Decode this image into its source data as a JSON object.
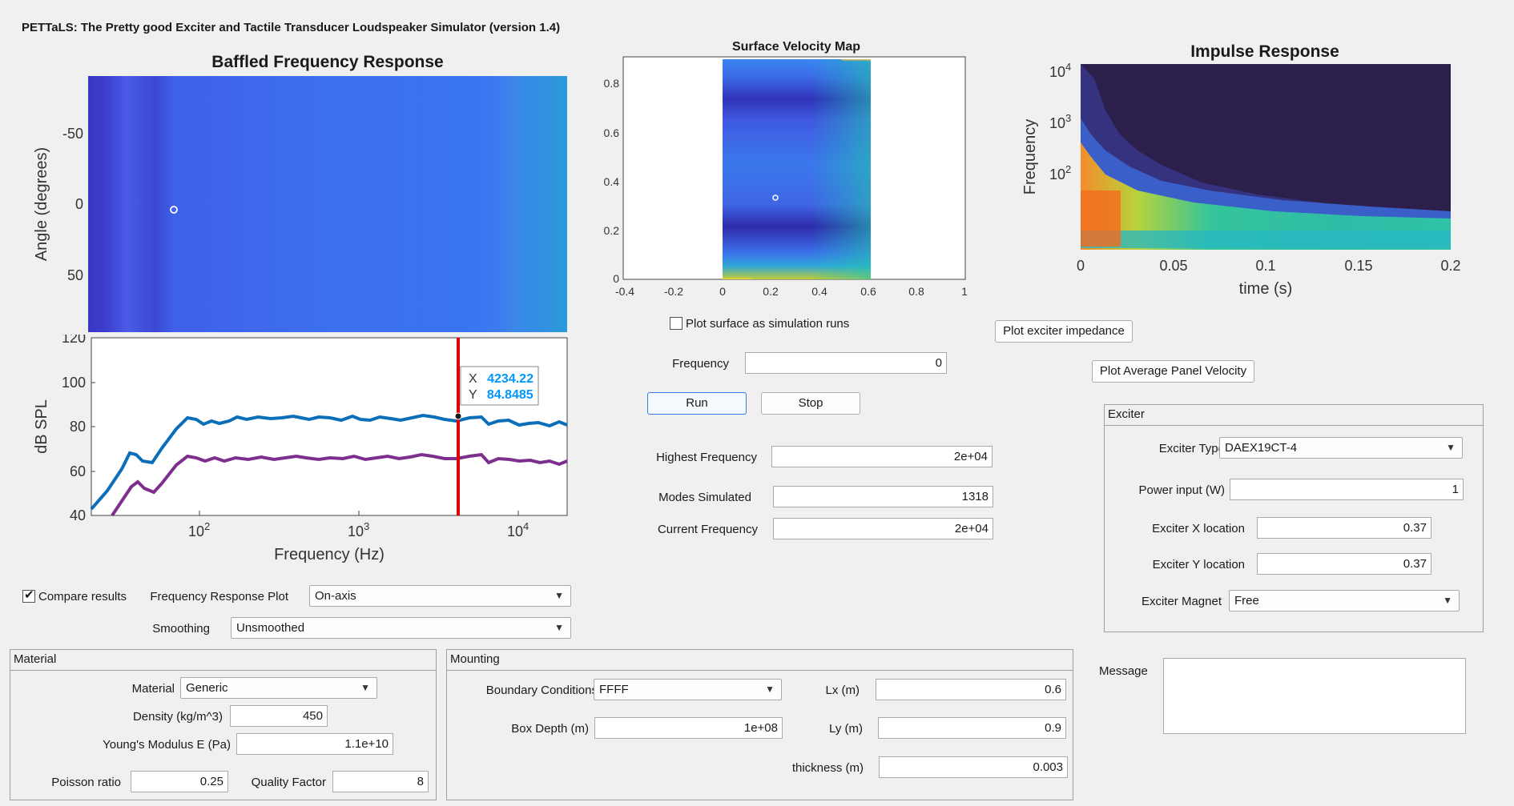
{
  "app_title": "PETTaLS: The Pretty good Exciter and Tactile Transducer Loudspeaker Simulator (version 1.4)",
  "baffled": {
    "title": "Baffled Frequency Response",
    "heatmap_ylabel": "Angle (degrees)",
    "heatmap_yticks": [
      "-50",
      "0",
      "50"
    ],
    "fr_ylabel": "dB SPL",
    "fr_xlabel": "Frequency (Hz)",
    "fr_yticks": [
      "120",
      "100",
      "80",
      "60",
      "40"
    ],
    "fr_xticks": [
      "10",
      "10",
      "10"
    ],
    "fr_xtick_exps": [
      "2",
      "3",
      "4"
    ],
    "datatip_x_label": "X",
    "datatip_x_value": "4234.22",
    "datatip_y_label": "Y",
    "datatip_y_value": "84.8485"
  },
  "surface": {
    "title": "Surface Velocity Map",
    "yticks": [
      "0.8",
      "0.6",
      "0.4",
      "0.2",
      "0"
    ],
    "xticks": [
      "-0.4",
      "-0.2",
      "0",
      "0.2",
      "0.4",
      "0.6",
      "0.8",
      "1"
    ]
  },
  "impulse": {
    "title": "Impulse Response",
    "ylabel": "Frequency",
    "xlabel": "time (s)",
    "yticks": [
      "10",
      "10",
      "10"
    ],
    "ytick_exps": [
      "4",
      "3",
      "2"
    ],
    "xticks": [
      "0",
      "0.05",
      "0.1",
      "0.15",
      "0.2"
    ]
  },
  "controls": {
    "plot_surface_label": "Plot surface as simulation runs",
    "plot_surface_checked": false,
    "plot_impedance_button": "Plot exciter impedance",
    "plot_avg_velocity_button": "Plot Average Panel Velocity",
    "frequency_label": "Frequency",
    "frequency_value": "0",
    "run_button": "Run",
    "stop_button": "Stop",
    "highest_freq_label": "Highest Frequency",
    "highest_freq_value": "2e+04",
    "modes_label": "Modes Simulated",
    "modes_value": "1318",
    "current_freq_label": "Current Frequency",
    "current_freq_value": "2e+04",
    "compare_label": "Compare results",
    "compare_checked": true,
    "fr_plot_label": "Frequency Response Plot",
    "fr_plot_value": "On-axis",
    "smoothing_label": "Smoothing",
    "smoothing_value": "Unsmoothed",
    "message_label": "Message",
    "message_value": ""
  },
  "exciter": {
    "panel_title": "Exciter",
    "type_label": "Exciter Type",
    "type_value": "DAEX19CT-4",
    "power_label": "Power input (W)",
    "power_value": "1",
    "x_label": "Exciter X location",
    "x_value": "0.37",
    "y_label": "Exciter Y location",
    "y_value": "0.37",
    "magnet_label": "Exciter Magnet",
    "magnet_value": "Free"
  },
  "material": {
    "panel_title": "Material",
    "material_label": "Material",
    "material_value": "Generic",
    "density_label": "Density (kg/m^3)",
    "density_value": "450",
    "youngs_label": "Young's Modulus E (Pa)",
    "youngs_value": "1.1e+10",
    "poisson_label": "Poisson ratio",
    "poisson_value": "0.25",
    "q_label": "Quality Factor",
    "q_value": "8"
  },
  "mounting": {
    "panel_title": "Mounting",
    "bc_label": "Boundary Conditions",
    "bc_value": "FFFF",
    "box_label": "Box Depth (m)",
    "box_value": "1e+08",
    "lx_label": "Lx (m)",
    "lx_value": "0.6",
    "ly_label": "Ly (m)",
    "ly_value": "0.9",
    "thick_label": "thickness (m)",
    "thick_value": "0.003"
  },
  "colors": {
    "series1": "#0a6fb8",
    "series2": "#7e2f8e",
    "cursor": "#e00000",
    "datatip_value": "#0096ff"
  }
}
